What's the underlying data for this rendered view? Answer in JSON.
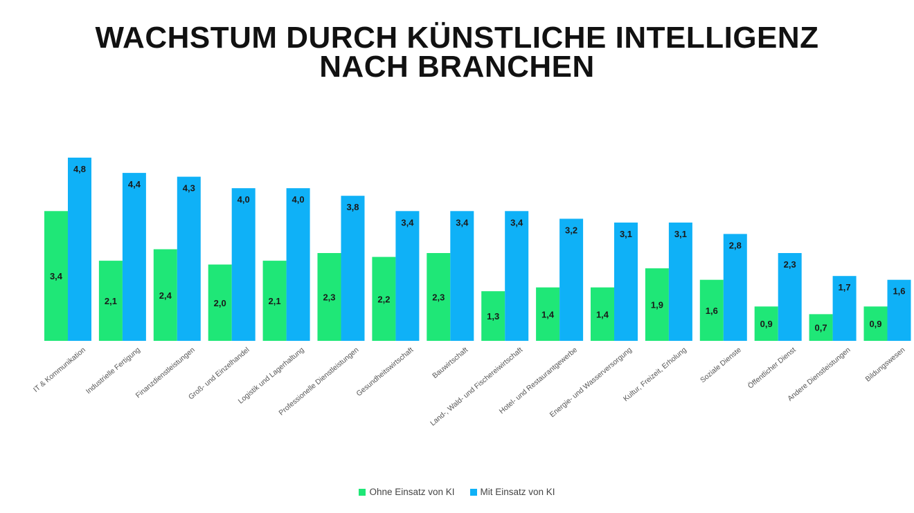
{
  "chart_data": {
    "type": "bar",
    "title_lines": [
      "WACHSTUM DURCH KÜNSTLICHE INTELLIGENZ",
      "NACH BRANCHEN"
    ],
    "xlabel": "",
    "ylabel": "",
    "ylim": [
      0,
      5
    ],
    "grid": false,
    "legend_position": "bottom",
    "categories": [
      "IT & Kommunikation",
      "Industrielle Fertigung",
      "Finanzdienstleistungen",
      "Groß- und Einzelhandel",
      "Logistik und Lagerhaltung",
      "Professionelle Dienstleistungen",
      "Gesundheitswirtschaft",
      "Bauwirtschaft",
      "Land-, Wald- und Fischereiwirtschaft",
      "Hotel- und Restaurantgewerbe",
      "Energie- und Wasserversorgung",
      "Kultur, Freizeit, Erholung",
      "Soziale Dienste",
      "Öffentlicher Dienst",
      "Andere Dienstleistungen",
      "Bildungswesen"
    ],
    "series": [
      {
        "name": "Ohne Einsatz von KI",
        "color": "#1fe777",
        "values": [
          3.4,
          2.1,
          2.4,
          2.0,
          2.1,
          2.3,
          2.2,
          2.3,
          1.3,
          1.4,
          1.4,
          1.9,
          1.6,
          0.9,
          0.7,
          0.9
        ],
        "labels": [
          "3,4",
          "2,1",
          "2,4",
          "2,0",
          "2,1",
          "2,3",
          "2,2",
          "2,3",
          "1,3",
          "1,4",
          "1,4",
          "1,9",
          "1,6",
          "0,9",
          "0,7",
          "0,9"
        ]
      },
      {
        "name": "Mit Einsatz von KI",
        "color": "#0fb1f7",
        "values": [
          4.8,
          4.4,
          4.3,
          4.0,
          4.0,
          3.8,
          3.4,
          3.4,
          3.4,
          3.2,
          3.1,
          3.1,
          2.8,
          2.3,
          1.7,
          1.6
        ],
        "labels": [
          "4,8",
          "4,4",
          "4,3",
          "4,0",
          "4,0",
          "3,8",
          "3,4",
          "3,4",
          "3,4",
          "3,2",
          "3,1",
          "3,1",
          "2,8",
          "2,3",
          "1,7",
          "1,6"
        ]
      }
    ]
  }
}
